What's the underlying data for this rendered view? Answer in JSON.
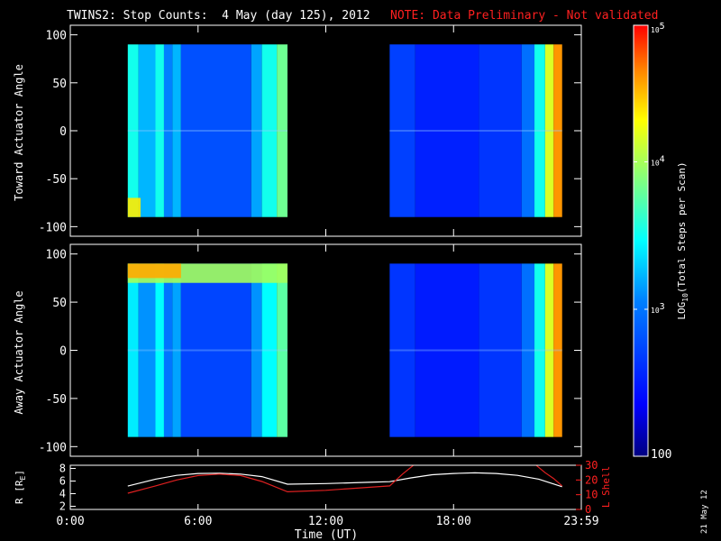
{
  "title": {
    "main": "TWINS2: Stop Counts:  4 May (day 125), 2012",
    "note": "NOTE: Data Preliminary - Not validated",
    "note_color": "#ff2020"
  },
  "datestamp": "21 May 12",
  "colors": {
    "text": "#ffffff",
    "accent": "#ff2020",
    "background": "#000000"
  },
  "chart_data": [
    {
      "type": "heatmap",
      "name": "toward",
      "ylabel": "Toward Actuator Angle",
      "ylim": [
        -110,
        110
      ],
      "yticks": [
        100,
        50,
        0,
        -50,
        -100
      ],
      "xlim": [
        0,
        24
      ],
      "segments": [
        [
          2.7,
          10.2
        ],
        [
          15,
          23.1
        ]
      ],
      "bands": [
        {
          "x0": 2.7,
          "x1": 3.2,
          "level": 0.52
        },
        {
          "x0": 3.2,
          "x1": 4.0,
          "level": 0.42
        },
        {
          "x0": 4.0,
          "x1": 4.4,
          "level": 0.52
        },
        {
          "x0": 4.4,
          "x1": 4.8,
          "level": 0.36
        },
        {
          "x0": 4.8,
          "x1": 5.2,
          "level": 0.42
        },
        {
          "x0": 5.2,
          "x1": 8.5,
          "level": 0.27
        },
        {
          "x0": 8.5,
          "x1": 9.0,
          "level": 0.4
        },
        {
          "x0": 9.0,
          "x1": 9.7,
          "level": 0.52
        },
        {
          "x0": 9.7,
          "x1": 10.2,
          "level": 0.62
        },
        {
          "x0": 15.0,
          "x1": 16.2,
          "level": 0.24
        },
        {
          "x0": 16.2,
          "x1": 19.2,
          "level": 0.18
        },
        {
          "x0": 19.2,
          "x1": 21.2,
          "level": 0.22
        },
        {
          "x0": 21.2,
          "x1": 21.8,
          "level": 0.33
        },
        {
          "x0": 21.8,
          "x1": 22.3,
          "level": 0.52
        },
        {
          "x0": 22.3,
          "x1": 22.7,
          "level": 0.74
        },
        {
          "x0": 22.7,
          "x1": 23.1,
          "level": 0.88
        }
      ],
      "hotspots": [
        {
          "x0": 2.7,
          "x1": 3.3,
          "y0": -90,
          "y1": -70,
          "level": 0.8
        }
      ]
    },
    {
      "type": "heatmap",
      "name": "away",
      "ylabel": "Away Actuator Angle",
      "ylim": [
        -110,
        110
      ],
      "yticks": [
        100,
        50,
        0,
        -50,
        -100
      ],
      "xlim": [
        0,
        24
      ],
      "segments": [
        [
          2.7,
          10.2
        ],
        [
          15,
          23.1
        ]
      ],
      "bands": [
        {
          "x0": 2.7,
          "x1": 3.2,
          "level": 0.48
        },
        {
          "x0": 3.2,
          "x1": 4.0,
          "level": 0.38
        },
        {
          "x0": 4.0,
          "x1": 4.4,
          "level": 0.5
        },
        {
          "x0": 4.4,
          "x1": 4.8,
          "level": 0.34
        },
        {
          "x0": 4.8,
          "x1": 5.2,
          "level": 0.4
        },
        {
          "x0": 5.2,
          "x1": 8.5,
          "level": 0.25
        },
        {
          "x0": 8.5,
          "x1": 9.0,
          "level": 0.38
        },
        {
          "x0": 9.0,
          "x1": 9.7,
          "level": 0.5
        },
        {
          "x0": 9.7,
          "x1": 10.2,
          "level": 0.6
        },
        {
          "x0": 15.0,
          "x1": 16.2,
          "level": 0.22
        },
        {
          "x0": 16.2,
          "x1": 19.2,
          "level": 0.17
        },
        {
          "x0": 19.2,
          "x1": 21.2,
          "level": 0.22
        },
        {
          "x0": 21.2,
          "x1": 21.8,
          "level": 0.33
        },
        {
          "x0": 21.8,
          "x1": 22.3,
          "level": 0.52
        },
        {
          "x0": 22.3,
          "x1": 22.7,
          "level": 0.74
        },
        {
          "x0": 22.7,
          "x1": 23.1,
          "level": 0.88
        }
      ],
      "hotspots": [
        {
          "x0": 2.7,
          "x1": 10.2,
          "y0": 70,
          "y1": 90,
          "level": 0.68
        },
        {
          "x0": 2.7,
          "x1": 5.2,
          "y0": 75,
          "y1": 90,
          "level": 0.86
        }
      ]
    },
    {
      "type": "line",
      "name": "orbit",
      "ylabel": "R [R",
      "ylabel_sub": "E",
      "ylabel_tail": "]",
      "ylim": [
        1.5,
        8.5
      ],
      "yticks": [
        8,
        6,
        4,
        2
      ],
      "y2label": "L Shell",
      "y2lim": [
        0,
        30
      ],
      "y2ticks": [
        30,
        20,
        10,
        0
      ],
      "xlabel": "Time (UT)",
      "xticks": [
        {
          "x": 0,
          "label": "0:00"
        },
        {
          "x": 6,
          "label": "6:00"
        },
        {
          "x": 12,
          "label": "12:00"
        },
        {
          "x": 18,
          "label": "18:00"
        },
        {
          "x": 24,
          "label": "23:59"
        }
      ],
      "series": [
        {
          "name": "R",
          "axis": "left",
          "color": "#ffffff",
          "x": [
            2.7,
            4,
            5,
            6,
            7,
            8,
            9,
            10.2,
            12,
            13,
            14,
            15,
            16,
            17,
            18,
            19,
            20,
            21,
            22,
            23.1
          ],
          "y": [
            5.2,
            6.3,
            6.9,
            7.2,
            7.25,
            7.1,
            6.7,
            5.5,
            5.6,
            5.7,
            5.8,
            5.9,
            6.5,
            7.0,
            7.2,
            7.3,
            7.2,
            6.9,
            6.3,
            5.1
          ]
        },
        {
          "name": "L Shell",
          "axis": "right",
          "color": "#e02020",
          "x": [
            2.7,
            4,
            5,
            6,
            7,
            8,
            9,
            10.2,
            12,
            13,
            14,
            15,
            15.6,
            16.2
          ],
          "y": [
            11,
            16,
            20,
            23,
            24,
            23,
            19,
            12,
            13,
            14,
            15,
            16,
            24,
            31
          ],
          "x2": [
            21.8,
            22.3,
            22.7,
            23.1
          ],
          "y2": [
            31,
            25,
            21,
            16
          ]
        }
      ]
    }
  ],
  "colorbar": {
    "label": "LOG",
    "label_sub": "10",
    "label_tail": "(Total Steps per Scan)",
    "ticks": [
      {
        "frac": 1.0,
        "base": "10",
        "exp": "5"
      },
      {
        "frac": 0.683,
        "base": "10",
        "exp": "4"
      },
      {
        "frac": 0.341,
        "base": "10",
        "exp": "3"
      },
      {
        "frac": 0.0,
        "base": "100",
        "exp": ""
      }
    ]
  }
}
